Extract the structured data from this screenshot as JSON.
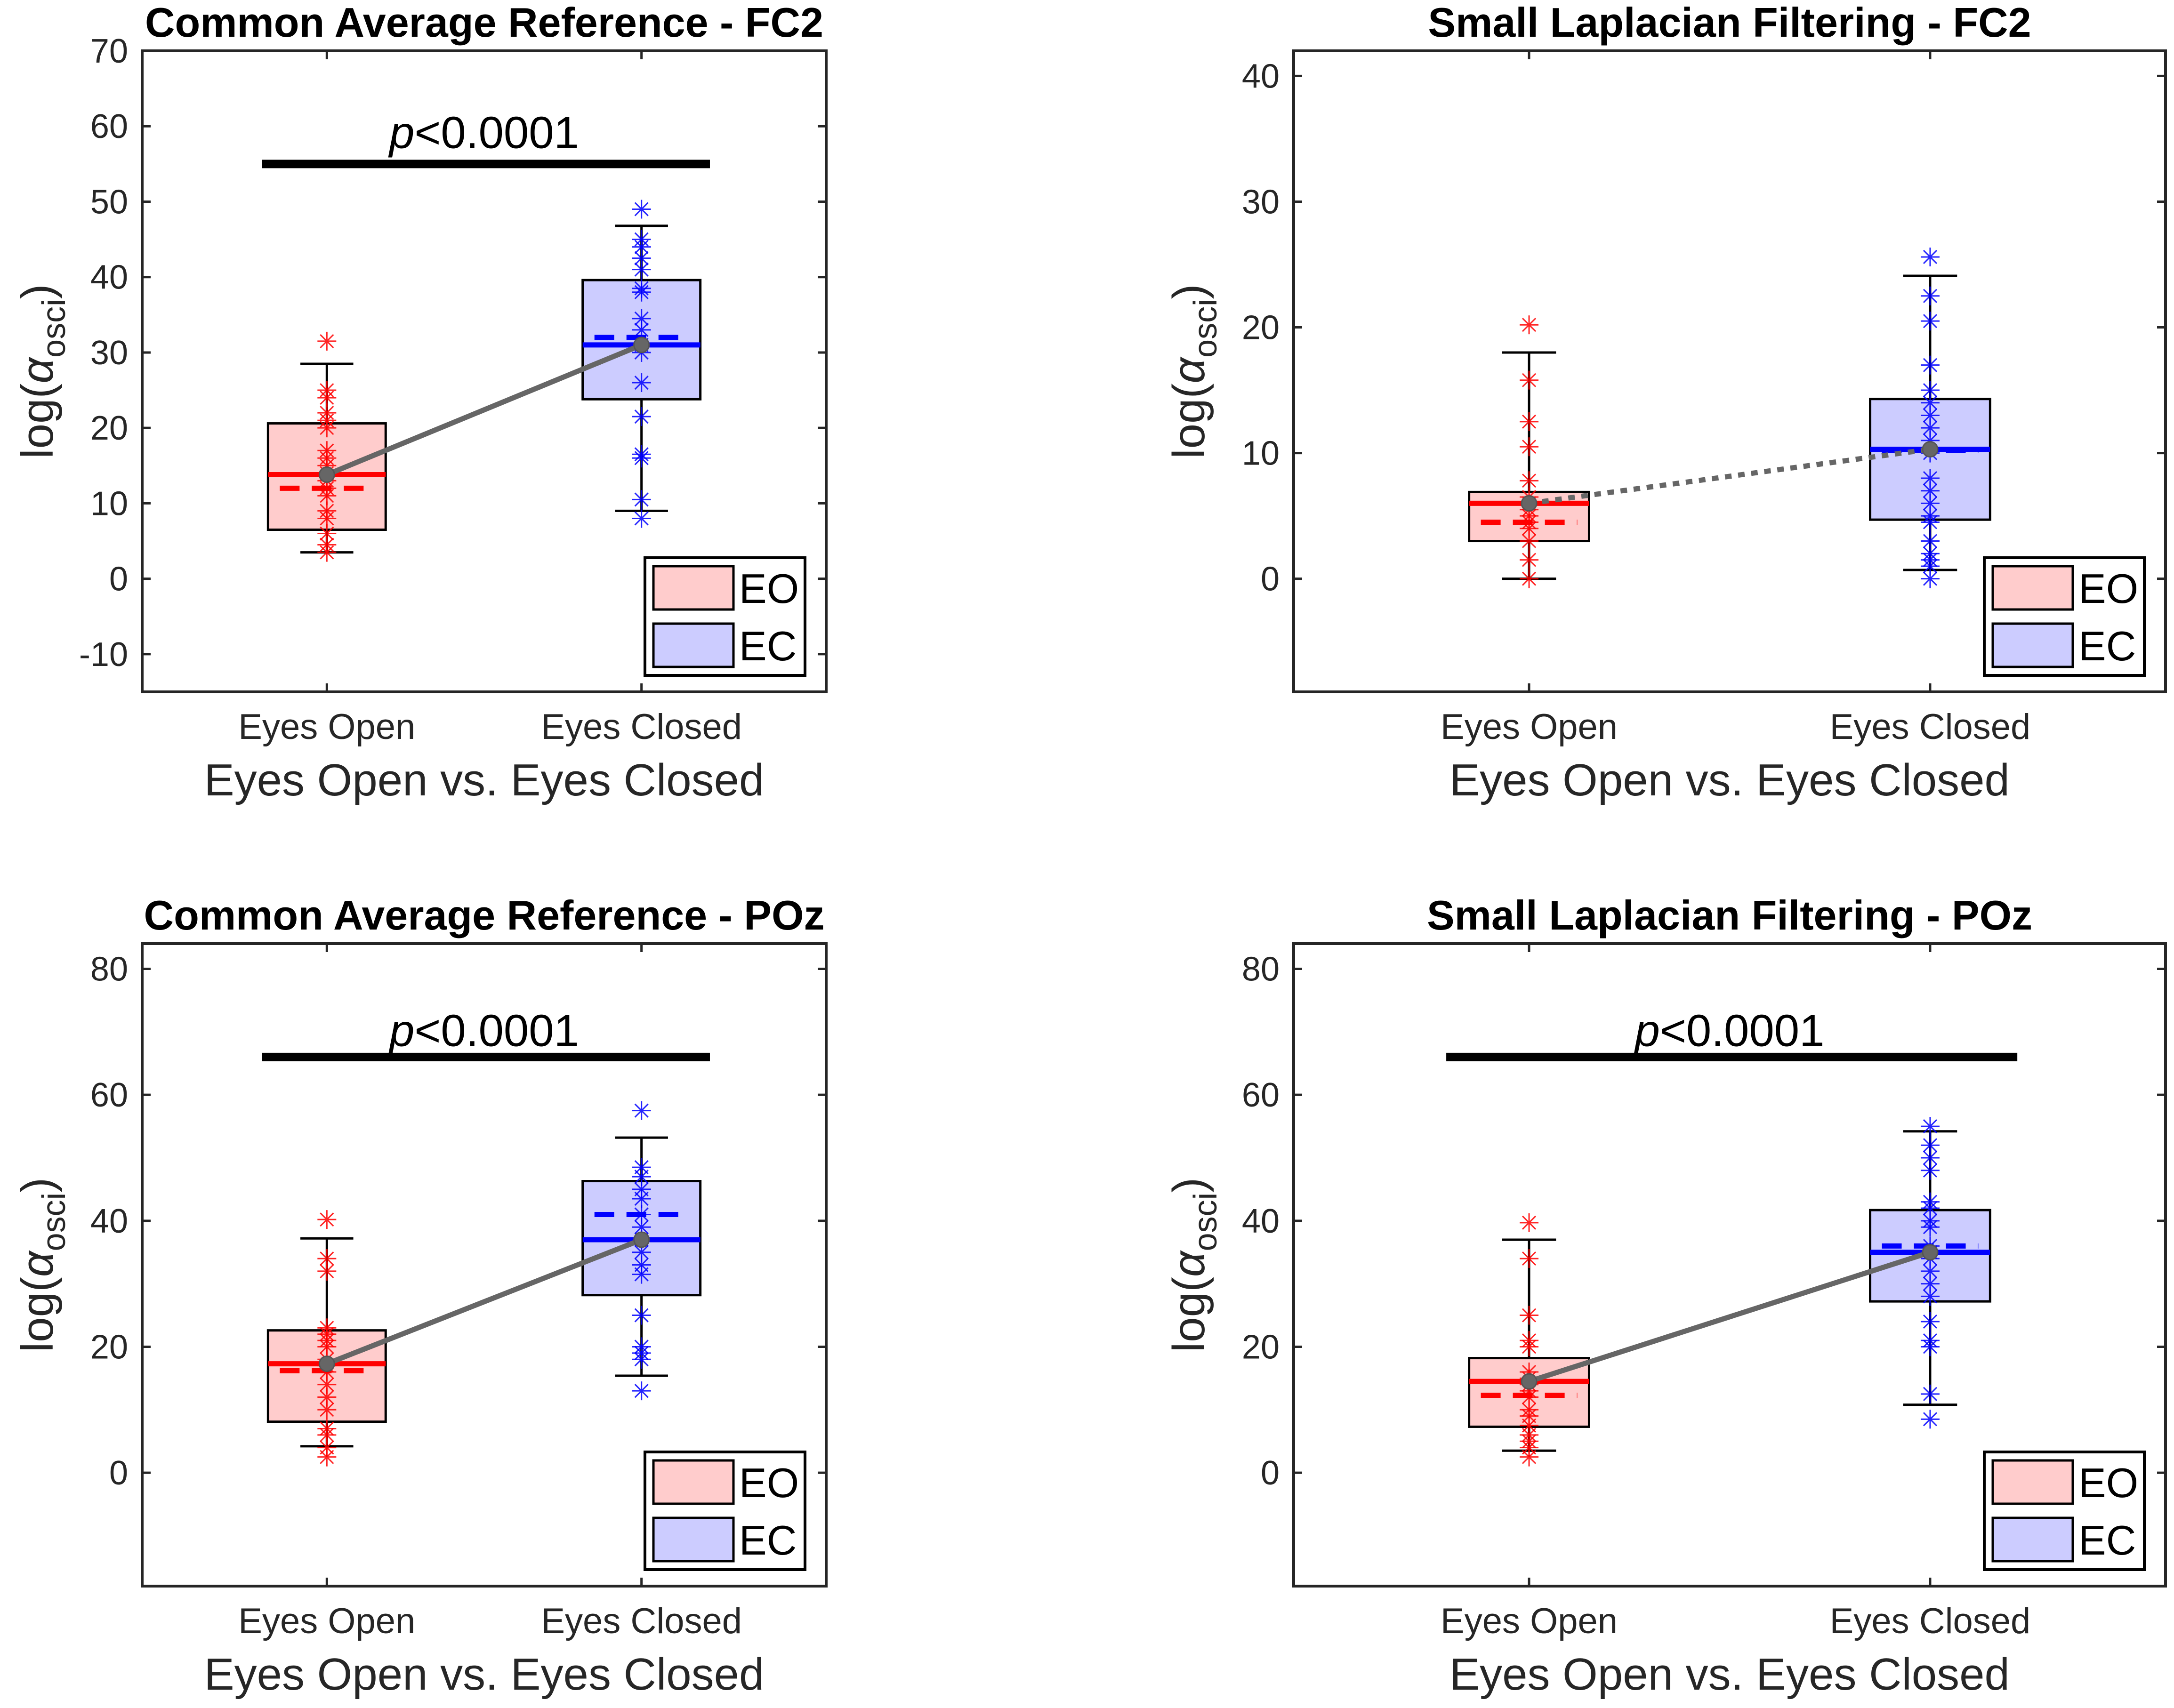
{
  "legend_colors": {
    "EO_fill": "#ffcccc",
    "EC_fill": "#ccccff",
    "EO_line": "#ff0000",
    "EC_line": "#0000ff",
    "connector": "#666666"
  },
  "chart_data": [
    {
      "type": "box",
      "title": "Common Average Reference - FC2",
      "xlabel": "Eyes Open vs. Eyes Closed",
      "ylabel": "log(α_osci)",
      "ylabel_base": "log(",
      "ylabel_symbol": "α",
      "ylabel_sub": "osci",
      "ylabel_close": ")",
      "categories": [
        "Eyes Open",
        "Eyes Closed"
      ],
      "ylim": [
        -15,
        70
      ],
      "yticks": [
        -10,
        0,
        10,
        20,
        30,
        40,
        50,
        60,
        70
      ],
      "ytick_labels": [
        "-10",
        "0",
        "10",
        "20",
        "30",
        "40",
        "50",
        "60",
        "70"
      ],
      "legend": [
        "EO",
        "EC"
      ],
      "legend_position": "bottom-right",
      "significance": {
        "text_italic": "p",
        "text_rest": "<0.0001",
        "y": 55,
        "label_y": 59
      },
      "connector_style": "solid",
      "series": [
        {
          "name": "EO",
          "whisker_low": 3.5,
          "q1": 6.5,
          "median": 13.8,
          "mean": 12.0,
          "q3": 20.6,
          "whisker_high": 28.5,
          "points": [
            3.5,
            4.5,
            6,
            8,
            9,
            11,
            12,
            13,
            14,
            15,
            16,
            17,
            20,
            21,
            22,
            24,
            25,
            31.5
          ]
        },
        {
          "name": "EC",
          "whisker_low": 9.0,
          "q1": 23.8,
          "median": 31.0,
          "mean": 32.0,
          "q3": 39.6,
          "whisker_high": 46.8,
          "points": [
            8,
            10.5,
            16,
            16.5,
            21.5,
            26,
            30,
            31,
            33,
            34.5,
            38,
            38.5,
            41,
            42.5,
            44,
            45,
            49
          ]
        }
      ]
    },
    {
      "type": "box",
      "title": "Small Laplacian Filtering - FC2",
      "xlabel": "Eyes Open vs. Eyes Closed",
      "ylabel": "log(α_osci)",
      "ylabel_base": "log(",
      "ylabel_symbol": "α",
      "ylabel_sub": "osci",
      "ylabel_close": ")",
      "categories": [
        "Eyes Open",
        "Eyes Closed"
      ],
      "ylim": [
        -9,
        42
      ],
      "yticks": [
        0,
        10,
        20,
        30,
        40
      ],
      "ytick_labels": [
        "0",
        "10",
        "20",
        "30",
        "40"
      ],
      "legend": [
        "EO",
        "EC"
      ],
      "legend_position": "bottom-right",
      "significance": null,
      "connector_style": "dotted",
      "series": [
        {
          "name": "EO",
          "whisker_low": 0.0,
          "q1": 3.0,
          "median": 6.0,
          "mean": 4.5,
          "q3": 6.9,
          "whisker_high": 18.0,
          "points": [
            0,
            1.5,
            3,
            4,
            4.5,
            5,
            5.5,
            6,
            6.5,
            7.8,
            10.5,
            12.5,
            15.8,
            20.2
          ]
        },
        {
          "name": "EC",
          "whisker_low": 0.7,
          "q1": 4.7,
          "median": 10.3,
          "mean": 10.2,
          "q3": 14.3,
          "whisker_high": 24.1,
          "points": [
            0,
            1,
            1.5,
            2,
            3,
            4.5,
            5,
            6,
            7,
            8,
            10,
            11,
            12,
            13,
            14,
            15,
            17,
            20.5,
            22.5,
            25.6
          ]
        }
      ]
    },
    {
      "type": "box",
      "title": "Common Average Reference - POz",
      "xlabel": "Eyes Open vs. Eyes Closed",
      "ylabel": "log(α_osci)",
      "ylabel_base": "log(",
      "ylabel_symbol": "α",
      "ylabel_sub": "osci",
      "ylabel_close": ")",
      "categories": [
        "Eyes Open",
        "Eyes Closed"
      ],
      "ylim": [
        -18,
        84
      ],
      "yticks": [
        0,
        20,
        40,
        60,
        80
      ],
      "ytick_labels": [
        "0",
        "20",
        "40",
        "60",
        "80"
      ],
      "legend": [
        "EO",
        "EC"
      ],
      "legend_position": "bottom-right",
      "significance": {
        "text_italic": "p",
        "text_rest": "<0.0001",
        "y": 66,
        "label_y": 70
      },
      "connector_style": "solid",
      "series": [
        {
          "name": "EO",
          "whisker_low": 4.2,
          "q1": 8.1,
          "median": 17.3,
          "mean": 16.2,
          "q3": 22.6,
          "whisker_high": 37.2,
          "points": [
            2.5,
            4,
            6,
            7,
            10,
            12,
            14,
            16,
            17,
            18,
            20,
            21,
            22,
            23,
            32,
            34,
            40.2
          ]
        },
        {
          "name": "EC",
          "whisker_low": 15.4,
          "q1": 28.2,
          "median": 37.0,
          "mean": 41.0,
          "q3": 46.3,
          "whisker_high": 53.2,
          "points": [
            13,
            18,
            19,
            20,
            25,
            31.5,
            33,
            35,
            37,
            39,
            41,
            43.5,
            45,
            47,
            48.5,
            57.5
          ]
        }
      ]
    },
    {
      "type": "box",
      "title": "Small Laplacian Filtering - POz",
      "xlabel": "Eyes Open vs. Eyes Closed",
      "ylabel": "log(α_osci)",
      "ylabel_base": "log(",
      "ylabel_symbol": "α",
      "ylabel_sub": "osci",
      "ylabel_close": ")",
      "categories": [
        "Eyes Open",
        "Eyes Closed"
      ],
      "ylim": [
        -18,
        84
      ],
      "yticks": [
        0,
        20,
        40,
        60,
        80
      ],
      "ytick_labels": [
        "0",
        "20",
        "40",
        "60",
        "80"
      ],
      "legend": [
        "EO",
        "EC"
      ],
      "legend_position": "bottom-right",
      "significance": {
        "text_italic": "p",
        "text_rest": "<0.0001",
        "y": 66,
        "label_y": 70
      },
      "connector_style": "solid",
      "series": [
        {
          "name": "EO",
          "whisker_low": 3.5,
          "q1": 7.3,
          "median": 14.5,
          "mean": 12.3,
          "q3": 18.2,
          "whisker_high": 37.0,
          "points": [
            2.5,
            4,
            5,
            6,
            7.5,
            9,
            10,
            12,
            13,
            14,
            15,
            16,
            20,
            21,
            25,
            34,
            39.7
          ]
        },
        {
          "name": "EC",
          "whisker_low": 10.8,
          "q1": 27.2,
          "median": 35.0,
          "mean": 36.0,
          "q3": 41.7,
          "whisker_high": 54.2,
          "points": [
            8.5,
            12.5,
            20,
            21,
            24,
            28,
            30,
            32,
            34,
            35,
            36,
            39,
            40,
            42,
            43,
            48,
            50,
            52,
            55
          ]
        }
      ]
    }
  ]
}
